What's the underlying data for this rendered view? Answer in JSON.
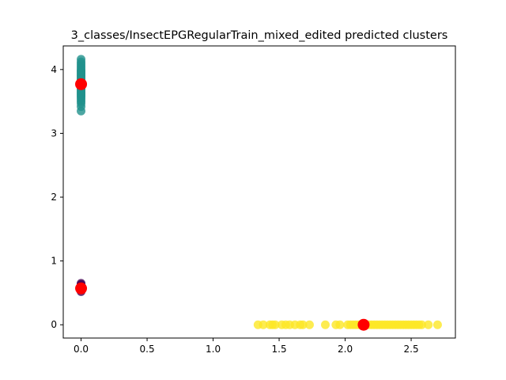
{
  "chart_data": {
    "type": "scatter",
    "title": "3_classes/InsectEPGRegularTrain_mixed_edited predicted clusters",
    "xlabel": "",
    "ylabel": "",
    "xlim": [
      -0.135,
      2.835
    ],
    "ylim": [
      -0.208,
      4.37
    ],
    "xticks": [
      {
        "value": 0.0,
        "label": "0.0"
      },
      {
        "value": 0.5,
        "label": "0.5"
      },
      {
        "value": 1.0,
        "label": "1.0"
      },
      {
        "value": 1.5,
        "label": "1.5"
      },
      {
        "value": 2.0,
        "label": "2.0"
      },
      {
        "value": 2.5,
        "label": "2.5"
      }
    ],
    "yticks": [
      {
        "value": 0,
        "label": "0"
      },
      {
        "value": 1,
        "label": "1"
      },
      {
        "value": 2,
        "label": "2"
      },
      {
        "value": 3,
        "label": "3"
      },
      {
        "value": 4,
        "label": "4"
      }
    ],
    "grid": false,
    "legend": "none",
    "series": [
      {
        "color": "#440154",
        "points": [
          [
            0.0,
            0.52
          ],
          [
            0.0,
            0.55
          ],
          [
            0.0,
            0.57
          ],
          [
            0.0,
            0.59
          ],
          [
            0.0,
            0.61
          ],
          [
            0.0,
            0.63
          ],
          [
            0.0,
            0.65
          ]
        ]
      },
      {
        "color": "#21918c",
        "points": [
          [
            0.0,
            3.35
          ],
          [
            0.0,
            3.42
          ],
          [
            0.0,
            3.47
          ],
          [
            0.0,
            3.5
          ],
          [
            0.0,
            3.53
          ],
          [
            0.0,
            3.56
          ],
          [
            0.0,
            3.58
          ],
          [
            0.0,
            3.6
          ],
          [
            0.0,
            3.62
          ],
          [
            0.0,
            3.64
          ],
          [
            0.0,
            3.66
          ],
          [
            0.0,
            3.68
          ],
          [
            0.0,
            3.7
          ],
          [
            0.0,
            3.72
          ],
          [
            0.0,
            3.74
          ],
          [
            0.0,
            3.76
          ],
          [
            0.0,
            3.78
          ],
          [
            0.0,
            3.8
          ],
          [
            0.0,
            3.82
          ],
          [
            0.0,
            3.84
          ],
          [
            0.0,
            3.86
          ],
          [
            0.0,
            3.88
          ],
          [
            0.0,
            3.9
          ],
          [
            0.0,
            3.92
          ],
          [
            0.0,
            3.94
          ],
          [
            0.0,
            3.96
          ],
          [
            0.0,
            3.98
          ],
          [
            0.0,
            4.0
          ],
          [
            0.0,
            4.03
          ],
          [
            0.0,
            4.06
          ],
          [
            0.0,
            4.09
          ],
          [
            0.0,
            4.12
          ],
          [
            0.0,
            4.16
          ]
        ]
      },
      {
        "color": "#fde725",
        "points": [
          [
            1.34,
            0
          ],
          [
            1.38,
            0
          ],
          [
            1.43,
            0
          ],
          [
            1.45,
            0
          ],
          [
            1.47,
            0
          ],
          [
            1.52,
            0
          ],
          [
            1.55,
            0
          ],
          [
            1.58,
            0
          ],
          [
            1.62,
            0
          ],
          [
            1.66,
            0
          ],
          [
            1.68,
            0
          ],
          [
            1.73,
            0
          ],
          [
            1.85,
            0
          ],
          [
            1.93,
            0
          ],
          [
            1.96,
            0
          ],
          [
            2.02,
            0
          ],
          [
            2.04,
            0
          ],
          [
            2.06,
            0
          ],
          [
            2.08,
            0
          ],
          [
            2.1,
            0
          ],
          [
            2.12,
            0
          ],
          [
            2.16,
            0
          ],
          [
            2.18,
            0
          ],
          [
            2.2,
            0
          ],
          [
            2.22,
            0
          ],
          [
            2.24,
            0
          ],
          [
            2.26,
            0
          ],
          [
            2.28,
            0
          ],
          [
            2.3,
            0
          ],
          [
            2.32,
            0
          ],
          [
            2.34,
            0
          ],
          [
            2.36,
            0
          ],
          [
            2.38,
            0
          ],
          [
            2.4,
            0
          ],
          [
            2.42,
            0
          ],
          [
            2.44,
            0
          ],
          [
            2.46,
            0
          ],
          [
            2.48,
            0
          ],
          [
            2.5,
            0
          ],
          [
            2.52,
            0
          ],
          [
            2.54,
            0
          ],
          [
            2.56,
            0
          ],
          [
            2.58,
            0
          ],
          [
            2.63,
            0
          ],
          [
            2.7,
            0
          ]
        ]
      }
    ],
    "centroids": {
      "color": "#ff0000",
      "points": [
        [
          0.0,
          3.77
        ],
        [
          0.0,
          0.57
        ],
        [
          2.14,
          0.0
        ]
      ]
    }
  }
}
